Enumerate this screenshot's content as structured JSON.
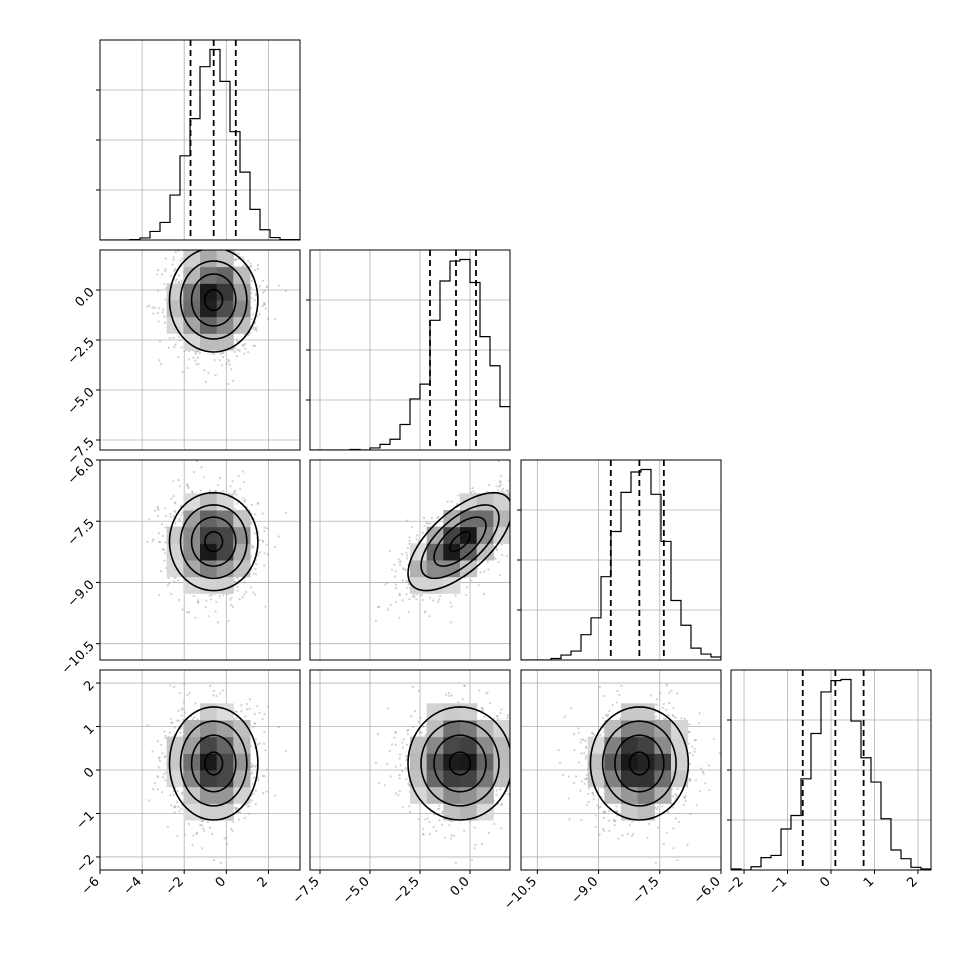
{
  "chart_data": {
    "type": "corner",
    "parameters": [
      {
        "index": 0,
        "mean": -0.6,
        "sd": 1.05,
        "range": [
          -6.0,
          3.5
        ],
        "quantiles": [
          -1.7,
          -0.6,
          0.45
        ],
        "ticks": [
          -6,
          -4,
          -2,
          0,
          2
        ],
        "tick_labels": [
          "−6",
          "−4",
          "−2",
          "0",
          "2"
        ]
      },
      {
        "index": 1,
        "mean": -0.5,
        "sd": 1.3,
        "range": [
          -8.0,
          2.0
        ],
        "quantiles": [
          -2.0,
          -0.7,
          0.3
        ],
        "ticks": [
          -7.5,
          -5.0,
          -2.5,
          0.0
        ],
        "tick_labels": [
          "−7.5",
          "−5.0",
          "−2.5",
          "0.0"
        ]
      },
      {
        "index": 2,
        "mean": -8.0,
        "sd": 0.6,
        "range": [
          -10.9,
          -6.0
        ],
        "quantiles": [
          -8.7,
          -8.0,
          -7.4
        ],
        "ticks": [
          -10.5,
          -9.0,
          -7.5,
          -6.0
        ],
        "tick_labels": [
          "−10.5",
          "−9.0",
          "−7.5",
          "−6.0"
        ]
      },
      {
        "index": 3,
        "mean": 0.15,
        "sd": 0.65,
        "range": [
          -2.3,
          2.3
        ],
        "quantiles": [
          -0.65,
          0.1,
          0.75
        ],
        "ticks": [
          -2,
          -1,
          0,
          1,
          2
        ],
        "tick_labels": [
          "−2",
          "−1",
          "0",
          "1",
          "2"
        ]
      }
    ],
    "correlations": {
      "1-2": 0.65
    },
    "histogram_bins": 20,
    "contour_levels": 4,
    "grid": true,
    "quantile_lines": "dashed"
  }
}
